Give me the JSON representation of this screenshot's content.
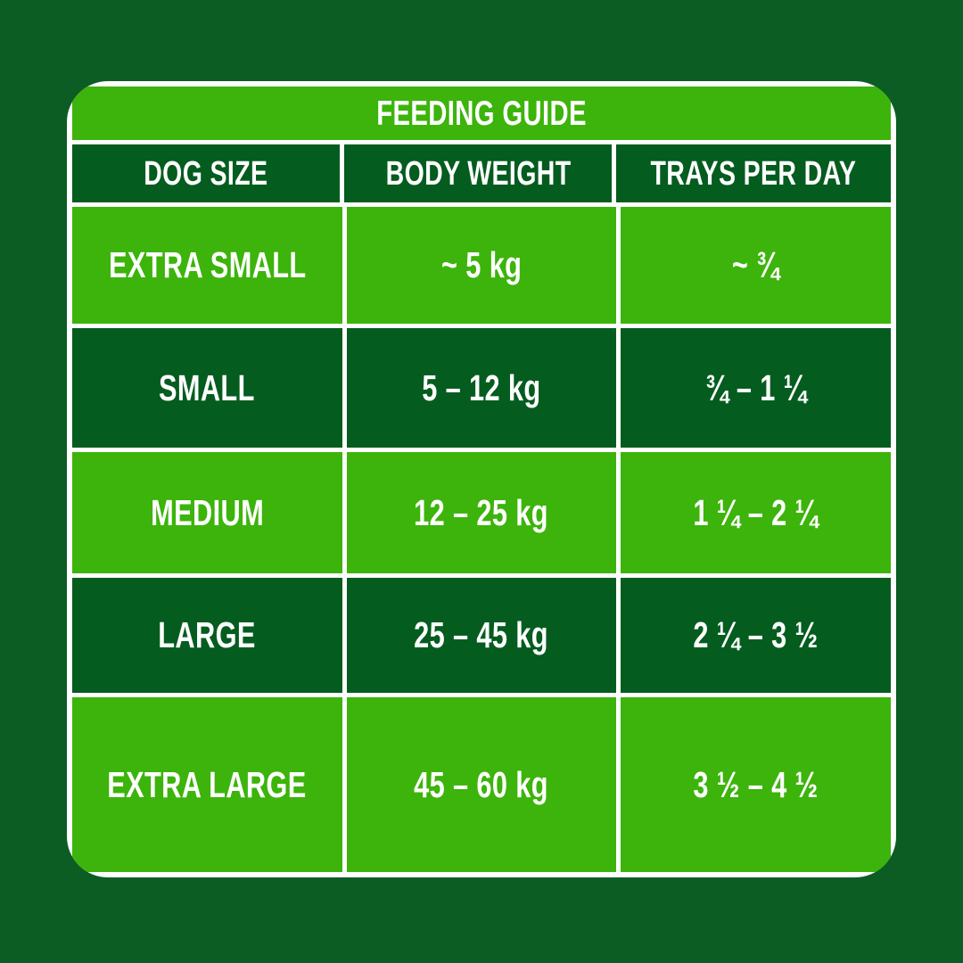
{
  "chart_data": {
    "type": "table",
    "title": "FEEDING GUIDE",
    "columns": [
      "DOG SIZE",
      "BODY WEIGHT",
      "TRAYS PER DAY"
    ],
    "rows": [
      [
        "EXTRA SMALL",
        "~ 5 kg",
        "~ ¾"
      ],
      [
        "SMALL",
        "5 – 12 kg",
        "¾ – 1 ¼"
      ],
      [
        "MEDIUM",
        "12 – 25 kg",
        "1 ¼ – 2 ¼"
      ],
      [
        "LARGE",
        "25 – 45 kg",
        "2 ¼ – 3 ½"
      ],
      [
        "EXTRA LARGE",
        "45 – 60 kg",
        "3 ½ – 4 ½"
      ]
    ],
    "row_variants": [
      "bright",
      "dark",
      "bright",
      "dark",
      "bright"
    ]
  },
  "colors": {
    "page_background": "#0C5D24",
    "bright_green": "#3CB40B",
    "dark_green": "#045C1F",
    "border_white": "#FFFFFF",
    "text_white": "#FFFFFF"
  }
}
